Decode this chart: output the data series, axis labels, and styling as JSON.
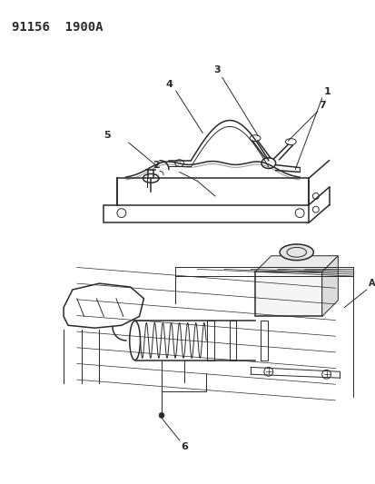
{
  "title": "91156  1900A",
  "bg_color": "#ffffff",
  "line_color": "#2a2a2a",
  "title_fontsize": 10,
  "label_fontsize": 8,
  "fig_width": 4.14,
  "fig_height": 5.33,
  "dpi": 100
}
